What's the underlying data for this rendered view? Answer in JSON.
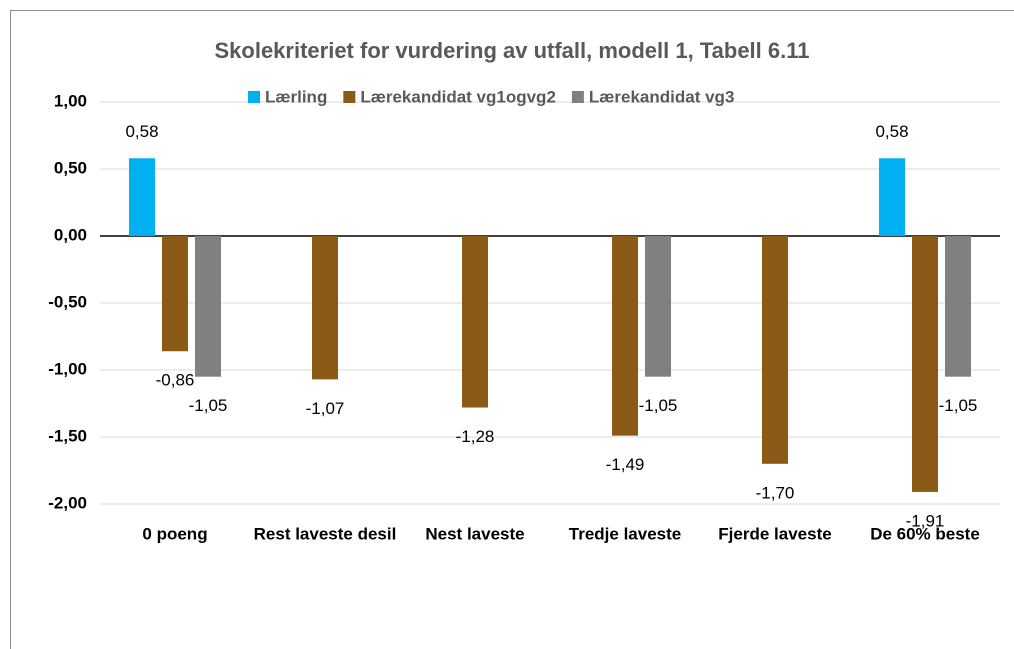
{
  "chart_data": {
    "type": "bar",
    "title": "Skolekriteriet for vurdering av utfall, modell 1, Tabell 6.11",
    "categories": [
      "0 poeng",
      "Rest laveste desil",
      "Nest laveste",
      "Tredje laveste",
      "Fjerde laveste",
      "De 60% beste"
    ],
    "series": [
      {
        "name": "Lærling",
        "color": "#00b0f0",
        "values": [
          0.58,
          null,
          null,
          null,
          null,
          0.58
        ],
        "value_labels": [
          "0,58",
          null,
          null,
          null,
          null,
          "0,58"
        ]
      },
      {
        "name": "Lærekandidat vg1ogvg2",
        "color": "#8c5a17",
        "values": [
          -0.86,
          -1.07,
          -1.28,
          -1.49,
          -1.7,
          -1.91
        ],
        "value_labels": [
          "-0,86",
          "-1,07",
          "-1,28",
          "-1,49",
          "-1,70",
          "-1,91"
        ]
      },
      {
        "name": "Lærekandidat vg3",
        "color": "#808080",
        "values": [
          -1.05,
          null,
          null,
          -1.05,
          null,
          -1.05
        ],
        "value_labels": [
          "-1,05",
          null,
          null,
          "-1,05",
          null,
          "-1,05"
        ]
      }
    ],
    "ylim": [
      -2,
      1
    ],
    "yticks": [
      {
        "value": -2,
        "label": "-2,00"
      },
      {
        "value": -1.5,
        "label": "-1,50"
      },
      {
        "value": -1,
        "label": "-1,00"
      },
      {
        "value": -0.5,
        "label": "-0,50"
      },
      {
        "value": 0,
        "label": "0,00"
      },
      {
        "value": 0.5,
        "label": "0,50"
      },
      {
        "value": 1,
        "label": "1,00"
      }
    ],
    "grid": true,
    "legend": "top"
  }
}
